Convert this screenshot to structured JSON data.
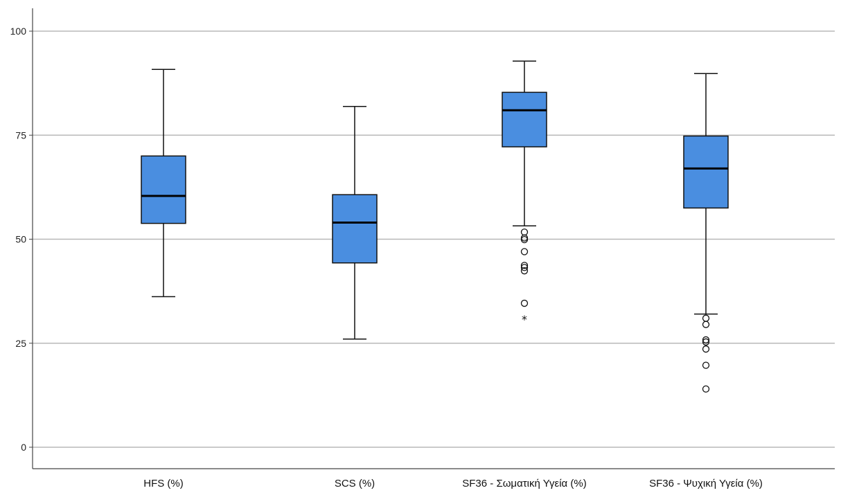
{
  "chart_data": {
    "type": "box",
    "title": "",
    "xlabel": "",
    "ylabel": "",
    "ylim": [
      0,
      100
    ],
    "yticks": [
      0,
      25,
      50,
      75,
      100
    ],
    "ytick_labels": [
      "0",
      "25",
      "50",
      "75",
      "100"
    ],
    "grid": "horizontal",
    "box_color": "#4a8ee0",
    "categories": [
      "HFS (%)",
      "SCS (%)",
      "SF36 - Σωματική Υγεία (%)",
      "SF36 - Ψυχική Υγεία (%)"
    ],
    "boxes": [
      {
        "min": 36.2,
        "q1": 53.8,
        "median": 60.4,
        "q3": 70.0,
        "max": 90.8,
        "outliers": [],
        "extremes": []
      },
      {
        "min": 26.0,
        "q1": 44.3,
        "median": 54.0,
        "q3": 60.7,
        "max": 81.9,
        "outliers": [],
        "extremes": []
      },
      {
        "min": 53.2,
        "q1": 72.2,
        "median": 81.0,
        "q3": 85.3,
        "max": 92.8,
        "outliers": [
          51.7,
          50.3,
          49.9,
          47.0,
          43.7,
          43.2,
          42.4,
          34.6
        ],
        "extremes": [
          30.8
        ]
      },
      {
        "min": 32.0,
        "q1": 57.5,
        "median": 67.0,
        "q3": 74.8,
        "max": 89.8,
        "outliers": [
          31.0,
          29.5,
          25.8,
          25.3,
          23.6,
          19.7,
          14.0
        ],
        "extremes": []
      }
    ]
  }
}
